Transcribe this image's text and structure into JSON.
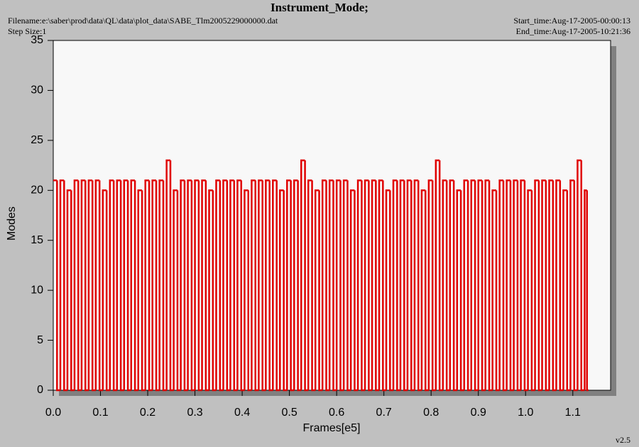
{
  "header": {
    "filename": "Filename:e:\\saber\\prod\\data\\QL\\data\\plot_data\\SABE_Tlm2005229000000.dat",
    "step_size": "Step Size:1",
    "start_time": "Start_time:Aug-17-2005-00:00:13",
    "end_time": "End_time:Aug-17-2005-10:21:36",
    "version": "v2.5"
  },
  "chart_data": {
    "type": "line",
    "step": true,
    "title": "Instrument_Mode;",
    "x_label": "Frames[e5]",
    "y_label": "Modes",
    "color": "#e00000",
    "xlim": [
      0,
      1.18
    ],
    "ylim": [
      0,
      35
    ],
    "xticks": [
      {
        "value": 0,
        "label": "0.0"
      },
      0.1,
      0.2,
      0.3,
      0.4,
      0.5,
      0.6,
      0.7,
      0.8,
      0.9,
      {
        "value": 1,
        "label": "1.0"
      },
      1.1
    ],
    "yticks": [
      0,
      5,
      10,
      15,
      20,
      25,
      30,
      35
    ],
    "x": [
      0,
      0.008,
      0.015,
      0.023,
      0.03,
      0.038,
      0.045,
      0.053,
      0.06,
      0.068,
      0.075,
      0.083,
      0.09,
      0.098,
      0.105,
      0.113,
      0.12,
      0.128,
      0.135,
      0.143,
      0.15,
      0.158,
      0.165,
      0.173,
      0.18,
      0.188,
      0.195,
      0.203,
      0.21,
      0.218,
      0.225,
      0.233,
      0.24,
      0.248,
      0.255,
      0.263,
      0.27,
      0.278,
      0.285,
      0.293,
      0.3,
      0.308,
      0.315,
      0.323,
      0.33,
      0.338,
      0.345,
      0.353,
      0.36,
      0.368,
      0.375,
      0.383,
      0.39,
      0.398,
      0.405,
      0.413,
      0.42,
      0.428,
      0.435,
      0.443,
      0.45,
      0.458,
      0.465,
      0.473,
      0.48,
      0.488,
      0.495,
      0.503,
      0.51,
      0.518,
      0.525,
      0.533,
      0.54,
      0.548,
      0.555,
      0.563,
      0.57,
      0.578,
      0.585,
      0.593,
      0.6,
      0.608,
      0.615,
      0.623,
      0.63,
      0.638,
      0.645,
      0.653,
      0.66,
      0.668,
      0.675,
      0.683,
      0.69,
      0.698,
      0.705,
      0.713,
      0.72,
      0.728,
      0.735,
      0.743,
      0.75,
      0.758,
      0.765,
      0.773,
      0.78,
      0.788,
      0.795,
      0.803,
      0.81,
      0.818,
      0.825,
      0.833,
      0.84,
      0.848,
      0.855,
      0.863,
      0.87,
      0.878,
      0.885,
      0.893,
      0.9,
      0.908,
      0.915,
      0.923,
      0.93,
      0.938,
      0.945,
      0.953,
      0.96,
      0.968,
      0.975,
      0.983,
      0.99,
      0.998,
      1.005,
      1.013,
      1.02,
      1.028,
      1.035,
      1.043,
      1.05,
      1.058,
      1.065,
      1.073,
      1.08,
      1.088,
      1.095,
      1.103,
      1.11,
      1.118,
      1.125,
      1.13
    ],
    "values": [
      21,
      0,
      21,
      0,
      20,
      0,
      21,
      0,
      21,
      0,
      21,
      0,
      21,
      0,
      20,
      0,
      21,
      0,
      21,
      0,
      21,
      0,
      21,
      0,
      20,
      0,
      21,
      0,
      21,
      0,
      21,
      0,
      23,
      0,
      20,
      0,
      21,
      0,
      21,
      0,
      21,
      0,
      21,
      0,
      20,
      0,
      21,
      0,
      21,
      0,
      21,
      0,
      21,
      0,
      20,
      0,
      21,
      0,
      21,
      0,
      21,
      0,
      21,
      0,
      20,
      0,
      21,
      0,
      21,
      0,
      23,
      0,
      21,
      0,
      20,
      0,
      21,
      0,
      21,
      0,
      21,
      0,
      21,
      0,
      20,
      0,
      21,
      0,
      21,
      0,
      21,
      0,
      21,
      0,
      20,
      0,
      21,
      0,
      21,
      0,
      21,
      0,
      21,
      0,
      20,
      0,
      21,
      0,
      23,
      0,
      21,
      0,
      21,
      0,
      20,
      0,
      21,
      0,
      21,
      0,
      21,
      0,
      21,
      0,
      20,
      0,
      21,
      0,
      21,
      0,
      21,
      0,
      21,
      0,
      20,
      0,
      21,
      0,
      21,
      0,
      21,
      0,
      21,
      0,
      20,
      0,
      21,
      0,
      23,
      0,
      20,
      0
    ]
  }
}
